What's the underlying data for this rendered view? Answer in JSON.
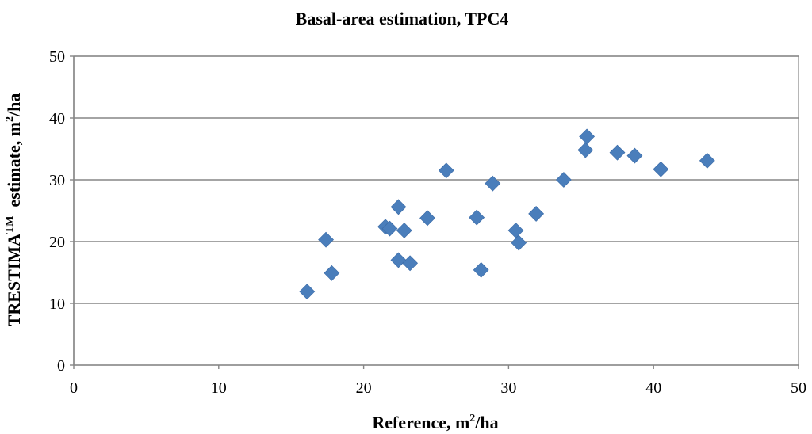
{
  "chart_data": {
    "type": "scatter",
    "title": "Basal-area estimation, TPC4",
    "xlabel": {
      "main": "Reference, m",
      "sup": "2",
      "tail": "/ha"
    },
    "ylabel": {
      "main": "TRESTIMA",
      "sup": "TM",
      "mid": "  estimate, m",
      "sup2": "2",
      "tail": "/ha"
    },
    "xlim": [
      0,
      50
    ],
    "ylim": [
      0,
      50
    ],
    "xticks": [
      0,
      10,
      20,
      30,
      40,
      50
    ],
    "yticks": [
      0,
      10,
      20,
      30,
      40,
      50
    ],
    "xtick_labels": [
      "0",
      "10",
      "20",
      "30",
      "40",
      "50"
    ],
    "ytick_labels": [
      "0",
      "10",
      "20",
      "30",
      "40",
      "50"
    ],
    "grid": "horizontal",
    "marker": "diamond",
    "marker_color": "#4a7ebb",
    "grid_color": "#868686",
    "series": [
      {
        "name": "TPC4",
        "points": [
          {
            "x": 16.1,
            "y": 11.9
          },
          {
            "x": 17.4,
            "y": 20.3
          },
          {
            "x": 17.8,
            "y": 14.9
          },
          {
            "x": 21.5,
            "y": 22.4
          },
          {
            "x": 21.8,
            "y": 22.1
          },
          {
            "x": 22.4,
            "y": 25.6
          },
          {
            "x": 22.4,
            "y": 17.0
          },
          {
            "x": 22.8,
            "y": 21.8
          },
          {
            "x": 23.2,
            "y": 16.5
          },
          {
            "x": 24.4,
            "y": 23.8
          },
          {
            "x": 25.7,
            "y": 31.5
          },
          {
            "x": 27.8,
            "y": 23.9
          },
          {
            "x": 28.1,
            "y": 15.4
          },
          {
            "x": 28.9,
            "y": 29.4
          },
          {
            "x": 30.5,
            "y": 21.8
          },
          {
            "x": 30.7,
            "y": 19.8
          },
          {
            "x": 31.9,
            "y": 24.5
          },
          {
            "x": 33.8,
            "y": 30.0
          },
          {
            "x": 35.3,
            "y": 34.8
          },
          {
            "x": 35.4,
            "y": 37.0
          },
          {
            "x": 37.5,
            "y": 34.4
          },
          {
            "x": 38.7,
            "y": 33.9
          },
          {
            "x": 40.5,
            "y": 31.7
          },
          {
            "x": 43.7,
            "y": 33.1
          }
        ]
      }
    ]
  }
}
